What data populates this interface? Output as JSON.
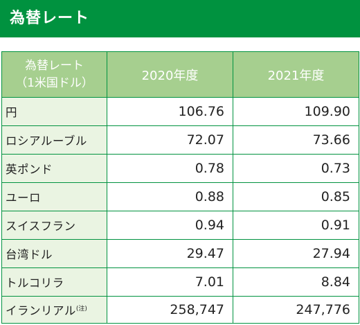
{
  "header": {
    "title": "為替レート"
  },
  "table": {
    "corner_line1": "為替レート",
    "corner_line2": "（1米国ドル）",
    "columns": [
      "2020年度",
      "2021年度"
    ],
    "rows": [
      {
        "name": "円",
        "note": "",
        "values": [
          "106.76",
          "109.90"
        ]
      },
      {
        "name": "ロシアルーブル",
        "note": "",
        "values": [
          "72.07",
          "73.66"
        ]
      },
      {
        "name": "英ポンド",
        "note": "",
        "values": [
          "0.78",
          "0.73"
        ]
      },
      {
        "name": "ユーロ",
        "note": "",
        "values": [
          "0.88",
          "0.85"
        ]
      },
      {
        "name": "スイスフラン",
        "note": "",
        "values": [
          "0.94",
          "0.91"
        ]
      },
      {
        "name": "台湾ドル",
        "note": "",
        "values": [
          "29.47",
          "27.94"
        ]
      },
      {
        "name": "トルコリラ",
        "note": "",
        "values": [
          "7.01",
          "8.84"
        ]
      },
      {
        "name": "イランリアル",
        "note": "(注)",
        "values": [
          "258,747",
          "247,776"
        ]
      }
    ]
  },
  "colors": {
    "header_bg": "#00923f",
    "column_header_bg": "#a6cf8f",
    "row_label_bg": "#eaf4e2",
    "border": "#00923f"
  }
}
